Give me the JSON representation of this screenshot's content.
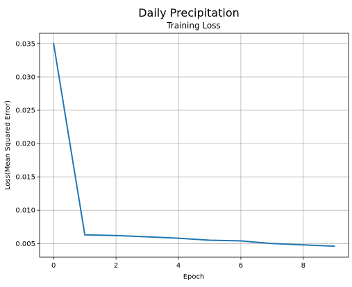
{
  "figure": {
    "suptitle": "Daily Precipitation"
  },
  "chart_data": {
    "type": "line",
    "title": "Training Loss",
    "xlabel": "Epoch",
    "ylabel": "Loss(Mean Squared Error)",
    "xlim": [
      -0.45,
      9.45
    ],
    "ylim": [
      0.00295,
      0.03655
    ],
    "grid": true,
    "xticks": [
      0,
      2,
      4,
      6,
      8
    ],
    "xtick_labels": [
      "0",
      "2",
      "4",
      "6",
      "8"
    ],
    "yticks": [
      0.005,
      0.01,
      0.015,
      0.02,
      0.025,
      0.03,
      0.035
    ],
    "ytick_labels": [
      "0.005",
      "0.010",
      "0.015",
      "0.020",
      "0.025",
      "0.030",
      "0.035"
    ],
    "series": [
      {
        "color": "#1f77b4",
        "x": [
          0,
          1,
          2,
          3,
          4,
          5,
          6,
          7,
          8,
          9
        ],
        "y": [
          0.035,
          0.0063,
          0.0062,
          0.006,
          0.0058,
          0.0055,
          0.0054,
          0.005,
          0.0048,
          0.0046
        ]
      }
    ]
  }
}
